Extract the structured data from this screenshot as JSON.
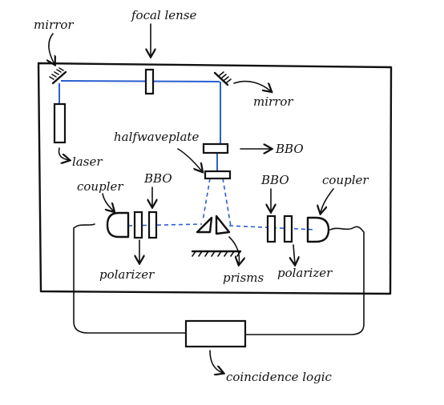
{
  "labels": {
    "mirror_top_left": "mirror",
    "focal_lense": "focal lense",
    "mirror_right": "mirror",
    "laser": "laser",
    "halfwaveplate": "halfwaveplate",
    "bbo_right_of_plate": "BBO",
    "coupler_left": "coupler",
    "bbo_left": "BBO",
    "bbo_right": "BBO",
    "coupler_right": "coupler",
    "polarizer_left": "polarizer",
    "prisms": "prisms",
    "polarizer_right": "polarizer",
    "coincidence_logic": "coincidence logic"
  },
  "colors": {
    "ink": "#111111",
    "beam": "#2a5fd0"
  }
}
